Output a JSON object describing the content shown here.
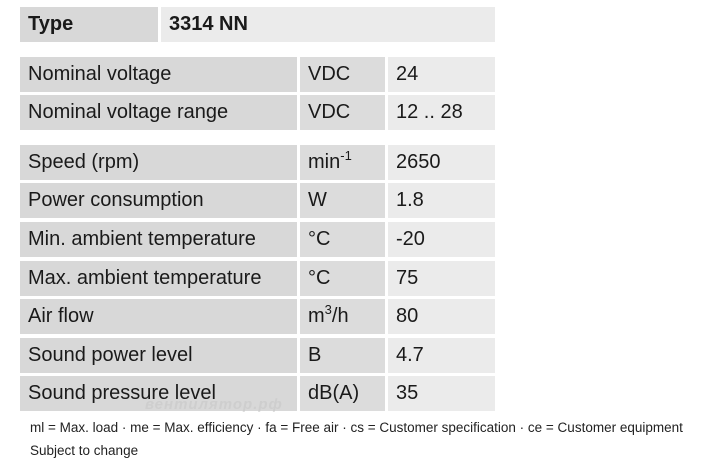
{
  "header": {
    "label": "Type",
    "value": "3314 NN"
  },
  "groups": [
    [
      {
        "name": "Nominal voltage",
        "unit": {
          "text": "VDC"
        },
        "value": "24"
      },
      {
        "name": "Nominal voltage range",
        "unit": {
          "text": "VDC"
        },
        "value": "12 .. 28"
      }
    ],
    [
      {
        "name": "Speed (rpm)",
        "unit": {
          "text": "min",
          "sup": "-1"
        },
        "value": "2650"
      },
      {
        "name": "Power consumption",
        "unit": {
          "text": "W"
        },
        "value": "1.8"
      },
      {
        "name": "Min. ambient temperature",
        "unit": {
          "text": "°C"
        },
        "value": "-20"
      },
      {
        "name": "Max. ambient temperature",
        "unit": {
          "text": "°C"
        },
        "value": "75"
      },
      {
        "name": "Air flow",
        "unit": {
          "text": "m",
          "sup": "3",
          "after": "/h"
        },
        "value": "80"
      },
      {
        "name": "Sound power level",
        "unit": {
          "text": "B"
        },
        "value": "4.7"
      },
      {
        "name": "Sound pressure level",
        "unit": {
          "text": "dB(A)"
        },
        "value": "35"
      }
    ]
  ],
  "watermark": "вентилятор.рф",
  "footnote": "ml = Max. load · me = Max. efficiency · fa = Free air · cs = Customer specification · ce = Customer equipment",
  "note": "Subject to change"
}
